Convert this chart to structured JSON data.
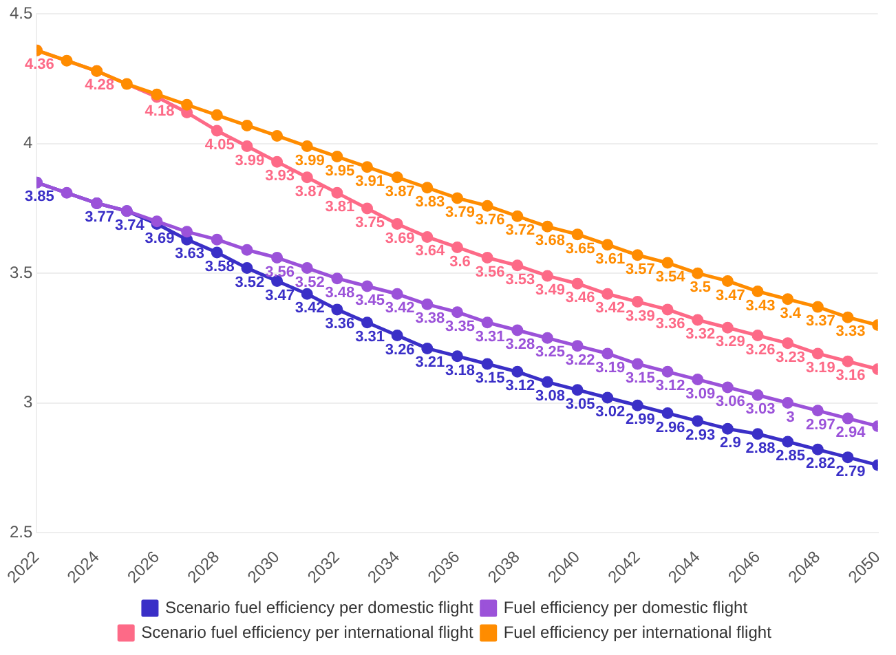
{
  "chart_data": {
    "type": "line",
    "x": [
      2022,
      2023,
      2024,
      2025,
      2026,
      2027,
      2028,
      2029,
      2030,
      2031,
      2032,
      2033,
      2034,
      2035,
      2036,
      2037,
      2038,
      2039,
      2040,
      2041,
      2042,
      2043,
      2044,
      2045,
      2046,
      2047,
      2048,
      2049,
      2050
    ],
    "xlim": [
      2022,
      2050
    ],
    "xticks": [
      2022,
      2024,
      2026,
      2028,
      2030,
      2032,
      2034,
      2036,
      2038,
      2040,
      2042,
      2044,
      2046,
      2048,
      2050
    ],
    "ylim": [
      2.5,
      4.5
    ],
    "yticks": [
      2.5,
      3,
      3.5,
      4,
      4.5
    ],
    "grid": "y",
    "legend": "bottom",
    "marker": "circle",
    "line_style": "solid",
    "series": [
      {
        "name": "Scenario fuel efficiency per domestic flight",
        "color": "#3a2fc7",
        "values": [
          3.85,
          null,
          3.77,
          3.74,
          3.69,
          3.63,
          3.58,
          3.52,
          3.47,
          3.42,
          3.36,
          3.31,
          3.26,
          3.21,
          3.18,
          3.15,
          3.12,
          3.08,
          3.05,
          3.02,
          2.99,
          2.96,
          2.93,
          2.9,
          2.88,
          2.85,
          2.82,
          2.79,
          2.76
        ],
        "value_labels": [
          "3.85",
          null,
          "3.77",
          "3.74",
          "3.69",
          "3.63",
          "3.58",
          "3.52",
          "3.47",
          "3.42",
          "3.36",
          "3.31",
          "3.26",
          "3.21",
          "3.18",
          "3.15",
          "3.12",
          "3.08",
          "3.05",
          "3.02",
          "2.99",
          "2.96",
          "2.93",
          "2.9",
          "2.88",
          "2.85",
          "2.82",
          "2.79",
          null
        ]
      },
      {
        "name": "Fuel efficiency per domestic flight",
        "color": "#9b52d9",
        "values": [
          3.85,
          3.81,
          3.77,
          3.74,
          3.7,
          3.66,
          3.63,
          3.59,
          3.56,
          3.52,
          3.48,
          3.45,
          3.42,
          3.38,
          3.35,
          3.31,
          3.28,
          3.25,
          3.22,
          3.19,
          3.15,
          3.12,
          3.09,
          3.06,
          3.03,
          3,
          2.97,
          2.94,
          2.91
        ],
        "value_labels": [
          null,
          null,
          null,
          null,
          null,
          null,
          null,
          null,
          "3.56",
          "3.52",
          "3.48",
          "3.45",
          "3.42",
          "3.38",
          "3.35",
          "3.31",
          "3.28",
          "3.25",
          "3.22",
          "3.19",
          "3.15",
          "3.12",
          "3.09",
          "3.06",
          "3.03",
          "3",
          "2.97",
          "2.94",
          null
        ]
      },
      {
        "name": "Scenario fuel efficiency per international flight",
        "color": "#fd6a87",
        "values": [
          4.36,
          null,
          4.28,
          null,
          4.18,
          4.12,
          4.05,
          3.99,
          3.93,
          3.87,
          3.81,
          3.75,
          3.69,
          3.64,
          3.6,
          3.56,
          3.53,
          3.49,
          3.46,
          3.42,
          3.39,
          3.36,
          3.32,
          3.29,
          3.26,
          3.23,
          3.19,
          3.16,
          3.13
        ],
        "value_labels": [
          "4.36",
          null,
          "4.28",
          null,
          "4.18",
          null,
          "4.05",
          "3.99",
          "3.93",
          "3.87",
          "3.81",
          "3.75",
          "3.69",
          "3.64",
          "3.6",
          "3.56",
          "3.53",
          "3.49",
          "3.46",
          "3.42",
          "3.39",
          "3.36",
          "3.32",
          "3.29",
          "3.26",
          "3.23",
          "3.19",
          "3.16",
          null
        ]
      },
      {
        "name": "Fuel efficiency per international flight",
        "color": "#ff8c00",
        "values": [
          4.36,
          4.32,
          4.28,
          4.23,
          4.19,
          4.15,
          4.11,
          4.07,
          4.03,
          3.99,
          3.95,
          3.91,
          3.87,
          3.83,
          3.79,
          3.76,
          3.72,
          3.68,
          3.65,
          3.61,
          3.57,
          3.54,
          3.5,
          3.47,
          3.43,
          3.4,
          3.37,
          3.33,
          3.3
        ],
        "value_labels": [
          null,
          null,
          null,
          null,
          null,
          null,
          null,
          null,
          null,
          "3.99",
          "3.95",
          "3.91",
          "3.87",
          "3.83",
          "3.79",
          "3.76",
          "3.72",
          "3.68",
          "3.65",
          "3.61",
          "3.57",
          "3.54",
          "3.5",
          "3.47",
          "3.43",
          "3.4",
          "3.37",
          "3.33",
          null
        ]
      }
    ]
  }
}
